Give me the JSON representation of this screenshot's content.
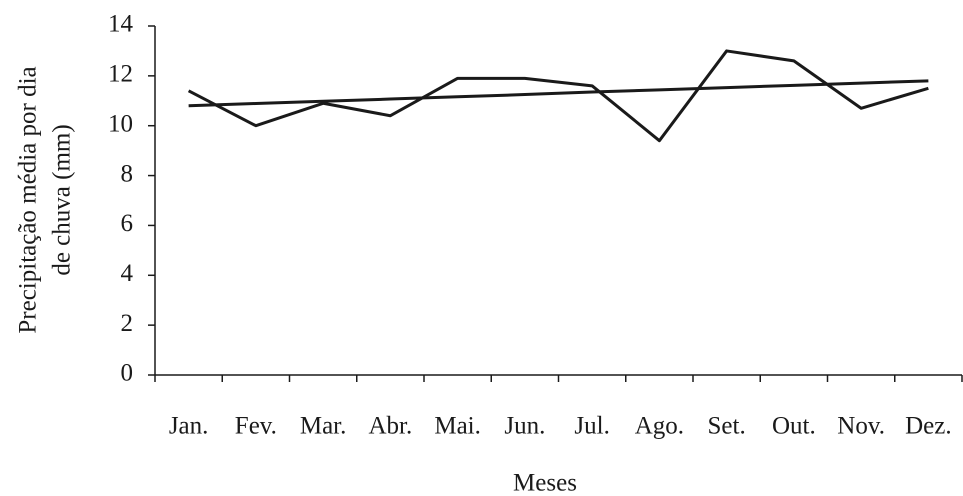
{
  "chart_data": {
    "type": "line",
    "xlabel": "Meses",
    "ylabel": [
      "Precipitação média por dia",
      "de chuva (mm)"
    ],
    "categories": [
      "Jan.",
      "Fev.",
      "Mar.",
      "Abr.",
      "Mai.",
      "Jun.",
      "Jul.",
      "Ago.",
      "Set.",
      "Out.",
      "Nov.",
      "Dez."
    ],
    "series": [
      {
        "color": "#1a1a1a",
        "values": [
          11.4,
          10.0,
          10.9,
          10.4,
          11.9,
          11.9,
          11.6,
          9.4,
          13.0,
          12.6,
          10.7,
          11.5
        ]
      },
      {
        "color": "#1a1a1a",
        "values": [
          10.8,
          10.89,
          10.98,
          11.07,
          11.16,
          11.25,
          11.35,
          11.44,
          11.53,
          11.62,
          11.71,
          11.8
        ]
      }
    ],
    "ylim": [
      0,
      14
    ],
    "yticks": [
      0,
      2,
      4,
      6,
      8,
      10,
      12,
      14
    ],
    "grid": false
  }
}
